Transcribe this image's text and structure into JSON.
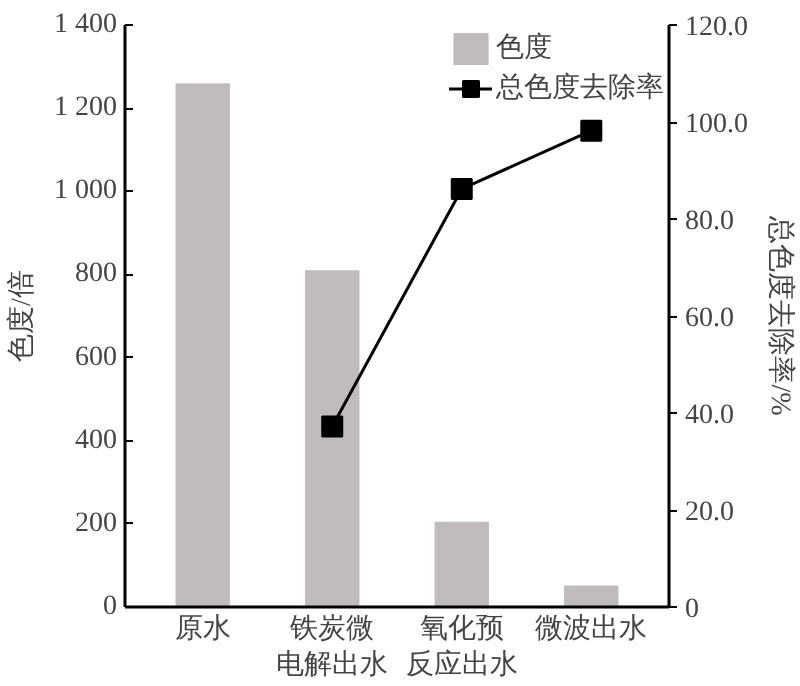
{
  "chart_data": {
    "type": "bar",
    "categories": [
      "原水",
      "铁炭微电解出水",
      "氧化预反应出水",
      "微波出水"
    ],
    "series": [
      {
        "name": "色度",
        "color": "#c0bcbc",
        "values": [
          1260,
          810,
          205,
          52
        ]
      },
      {
        "name": "总色度去除率",
        "type": "line",
        "axis": "y2",
        "color": "#000000",
        "marker": "square",
        "values": [
          null,
          37.2,
          86.2,
          98.2
        ]
      }
    ],
    "ylabel": "色度/倍",
    "y2label": "总色度去除率/%",
    "ylim": [
      0,
      1400
    ],
    "yticks": [
      0,
      200,
      400,
      600,
      800,
      {
        "value": 1000,
        "label": "1 000"
      },
      {
        "value": 1200,
        "label": "1 200"
      },
      {
        "value": 1400,
        "label": "1 400"
      }
    ],
    "y2lim": [
      0,
      120
    ],
    "y2ticks": [
      0,
      {
        "value": 20,
        "label": "20.0"
      },
      {
        "value": 40,
        "label": "40.0"
      },
      {
        "value": 60,
        "label": "60.0"
      },
      {
        "value": 80,
        "label": "80.0"
      },
      {
        "value": 100,
        "label": "100.0"
      },
      {
        "value": 120,
        "label": "120.0"
      }
    ],
    "legend": "top right",
    "grid": false
  }
}
